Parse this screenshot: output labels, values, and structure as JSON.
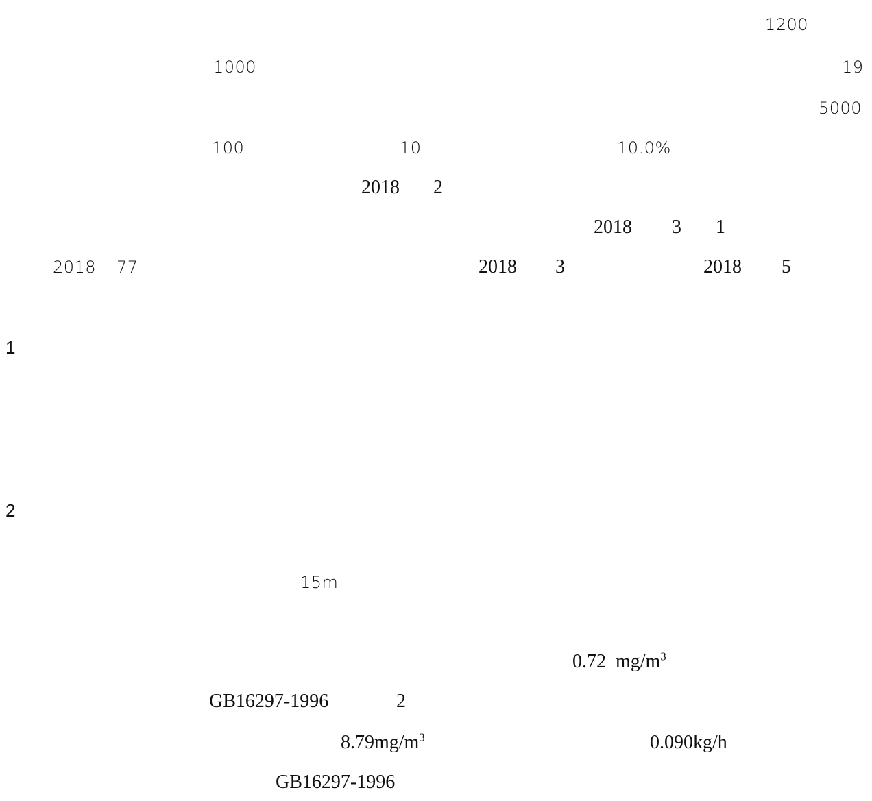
{
  "lines": {
    "l1": "1200",
    "l2a": "1000",
    "l2b": "19",
    "l3": "5000",
    "l4a": "100",
    "l4b": "10",
    "l4c": "10.0%",
    "l5a": "2018",
    "l5b": "2",
    "l6a": "2018",
    "l6b": "3",
    "l6c": "1",
    "l7a": "2018",
    "l7b": "77",
    "l7c": "2018",
    "l7d": "3",
    "l7e": "2018",
    "l7f": "5"
  },
  "headings": {
    "h1": "1",
    "h2": "2"
  },
  "section2": {
    "height": "15m",
    "conc1_value": "0.72",
    "conc1_unit": "mg/m",
    "conc1_exp": "3",
    "standard1": "GB16297-1996",
    "table_no": "2",
    "conc2_unit": "8.79mg/m",
    "conc2_exp": "3",
    "rate": "0.090kg/h",
    "standard2": "GB16297-1996"
  }
}
